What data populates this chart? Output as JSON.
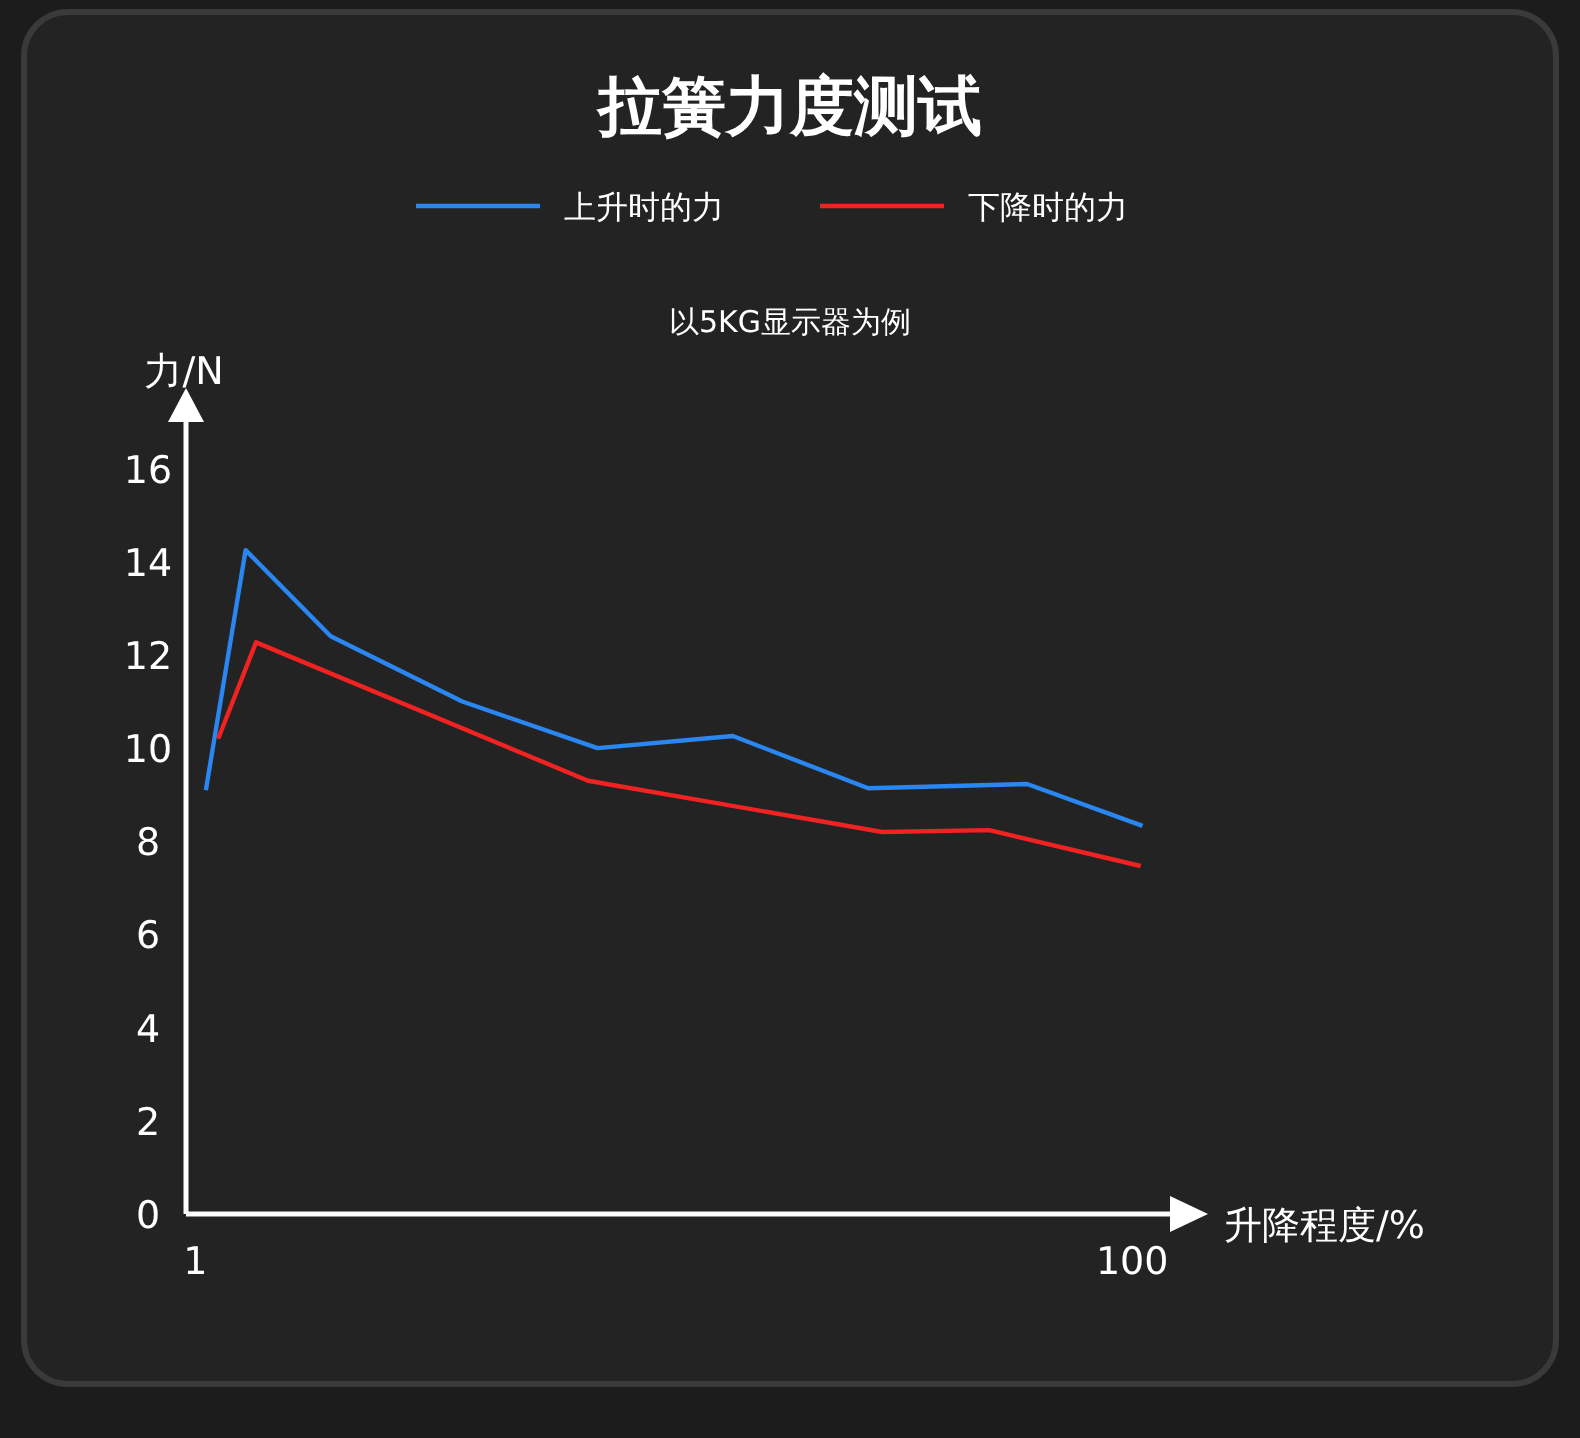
{
  "chart_data": {
    "type": "line",
    "title": "拉簧力度测试",
    "subtitle": "以5KG显示器为例",
    "xlabel": "升降程度/%",
    "ylabel": "力/N",
    "xlim": [
      0,
      104
    ],
    "xticks": [
      1,
      100
    ],
    "ylim": [
      0,
      17
    ],
    "yticks": [
      0,
      2,
      4,
      6,
      8,
      10,
      12,
      14,
      16
    ],
    "grid": false,
    "legend": "top",
    "marker": "none",
    "line_style": "solid",
    "series": [
      {
        "name": "上升时的力",
        "color": "#2a86f0",
        "x": [
          2.1,
          6.3,
          15.3,
          29.2,
          43.5,
          57.8,
          72.1,
          88.9,
          101.1
        ],
        "values": [
          9.1,
          14.25,
          12.4,
          11.0,
          10.0,
          10.26,
          9.14,
          9.23,
          8.33
        ]
      },
      {
        "name": "下降时的力",
        "color": "#f02222",
        "x": [
          3.4,
          7.4,
          42.5,
          73.6,
          84.9,
          100.9
        ],
        "values": [
          10.2,
          12.27,
          9.3,
          8.2,
          8.24,
          7.47
        ]
      }
    ]
  }
}
